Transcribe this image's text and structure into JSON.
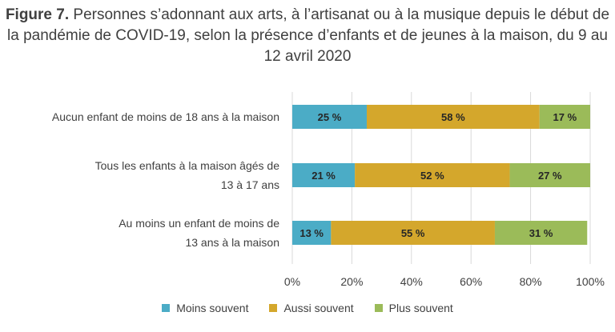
{
  "title": {
    "bold": "Figure 7.",
    "rest": " Personnes s’adonnant aux arts, à l’artisanat ou à la musique depuis le début de la pandémie de COVID-19, selon la présence d’enfants et de jeunes à la maison, du 9 au 12 avril 2020"
  },
  "chart_data": {
    "type": "bar",
    "orientation": "horizontal",
    "stacked": true,
    "categories": [
      [
        "Aucun enfant de moins de 18 ans à la maison"
      ],
      [
        "Tous les enfants à la maison âgés de",
        "13 à 17 ans"
      ],
      [
        "Au moins un enfant de moins de",
        "13 ans à la maison"
      ]
    ],
    "series": [
      {
        "name": "Moins souvent",
        "values": [
          25,
          21,
          13
        ],
        "labels": [
          "25 %",
          "21 %",
          "13 %"
        ],
        "color": "#4bacc6"
      },
      {
        "name": "Aussi souvent",
        "values": [
          58,
          52,
          55
        ],
        "labels": [
          "58 %",
          "52 %",
          "55 %"
        ],
        "color": "#d4a72c"
      },
      {
        "name": "Plus souvent",
        "values": [
          17,
          27,
          31
        ],
        "labels": [
          "17 %",
          "27 %",
          "31 %"
        ],
        "color": "#9bbb59"
      }
    ],
    "xlim": [
      0,
      100
    ],
    "xticks": [
      "0%",
      "20%",
      "40%",
      "60%",
      "80%",
      "100%"
    ],
    "grid": true,
    "legend_position": "bottom"
  }
}
